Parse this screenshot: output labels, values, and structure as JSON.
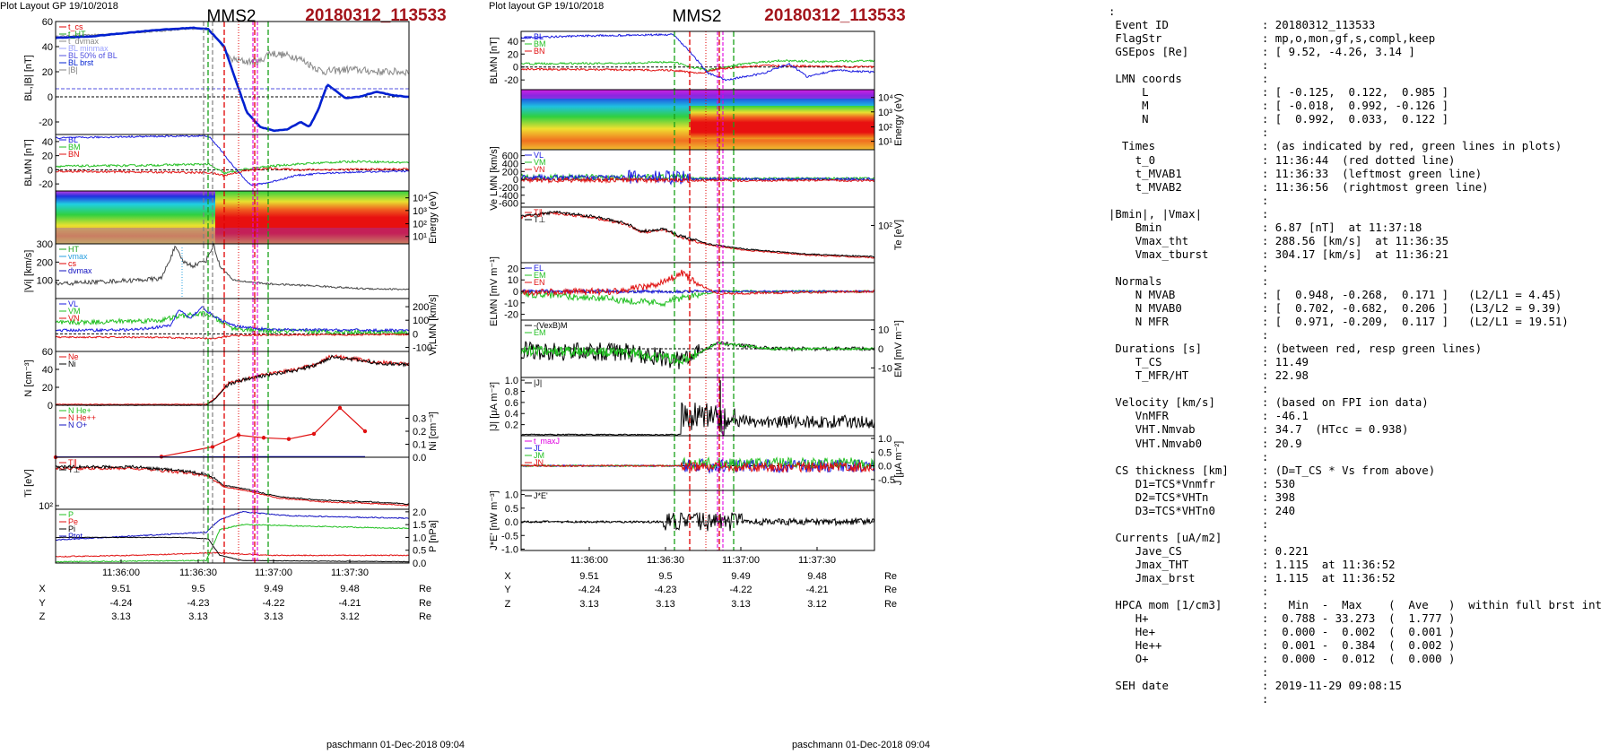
{
  "plots": [
    {
      "header": "Plot Layout GP 19/10/2018",
      "probe": "MMS2",
      "event_id": "20180312_113533",
      "footer": "paschmann 01-Dec-2018 09:04",
      "time_ticks": [
        "11:36:00",
        "11:36:30",
        "11:37:00",
        "11:37:30"
      ],
      "orbit_rows": [
        {
          "label": "X",
          "values": [
            "9.51",
            "9.5",
            "9.49",
            "9.48"
          ],
          "unit": "Re"
        },
        {
          "label": "Y",
          "values": [
            "-4.24",
            "-4.23",
            "-4.22",
            "-4.21"
          ],
          "unit": "Re"
        },
        {
          "label": "Z",
          "values": [
            "3.13",
            "3.13",
            "3.13",
            "3.12"
          ],
          "unit": "Re"
        }
      ],
      "panels": [
        {
          "id": "bl",
          "ylabel": "BL,|B| [nT]",
          "ylabel_side": "left",
          "ylim": [
            -30,
            60
          ],
          "yticks": [
            "60",
            "40",
            "20",
            "0",
            "-20"
          ],
          "yticks_side": "left",
          "legend": [
            {
              "text": "t_cs",
              "color": "#e00000"
            },
            {
              "text": "t_HT",
              "color": "#18a018"
            },
            {
              "text": "t_dvmax",
              "color": "#888888"
            },
            {
              "text": "BL minmax",
              "color": "#9aa0ff"
            },
            {
              "text": "BL 50% of BL",
              "color": "#5050e0"
            },
            {
              "text": "BL brst",
              "color": "#0020d0"
            },
            {
              "text": "|B|",
              "color": "#808080"
            }
          ]
        },
        {
          "id": "blmn",
          "ylabel": "BLMN [nT]",
          "ylabel_side": "left",
          "ylim": [
            -30,
            50
          ],
          "yticks": [
            "40",
            "20",
            "0",
            "-20"
          ],
          "yticks_side": "left",
          "legend": [
            {
              "text": "BL",
              "color": "#1a1ae0"
            },
            {
              "text": "BM",
              "color": "#22c022"
            },
            {
              "text": "BN",
              "color": "#e01010"
            }
          ]
        },
        {
          "id": "spec",
          "ylabel": "Energy (eV)",
          "ylabel_side": "right",
          "ylim": [
            1,
            4
          ],
          "yticks": [
            "10⁴",
            "10³",
            "10²",
            "10¹"
          ],
          "yticks_side": "right",
          "legend": []
        },
        {
          "id": "vi",
          "ylabel": "|Vi| [km/s]",
          "ylabel_side": "left",
          "ylim": [
            0,
            300
          ],
          "yticks": [
            "300",
            "200",
            "100"
          ],
          "yticks_side": "left",
          "legend": [
            {
              "text": "HT",
              "color": "#18a018"
            },
            {
              "text": "vmax",
              "color": "#2aa0e0"
            },
            {
              "text": "cs",
              "color": "#e00000"
            },
            {
              "text": "dvmax",
              "color": "#1010c0"
            }
          ]
        },
        {
          "id": "vilmn",
          "ylabel": "Vi,LMN [km/s]",
          "ylabel_side": "right",
          "ylim": [
            -130,
            260
          ],
          "yticks": [
            "200",
            "100",
            "0",
            "-100"
          ],
          "yticks_side": "right",
          "legend": [
            {
              "text": "VL",
              "color": "#1a1ae0"
            },
            {
              "text": "VM",
              "color": "#22c022"
            },
            {
              "text": "VN",
              "color": "#e01010"
            }
          ]
        },
        {
          "id": "n",
          "ylabel": "N [cm⁻³]",
          "ylabel_side": "left",
          "ylim": [
            0,
            60
          ],
          "yticks": [
            "60",
            "40",
            "20",
            "0"
          ],
          "yticks_side": "left",
          "legend": [
            {
              "text": "Ne",
              "color": "#e01010"
            },
            {
              "text": "Ni",
              "color": "#000000"
            }
          ]
        },
        {
          "id": "hpca",
          "ylabel": "Ni [cm⁻³]",
          "ylabel_side": "right",
          "ylim": [
            0,
            0.4
          ],
          "yticks": [
            "0.3",
            "0.2",
            "0.1",
            "0.0"
          ],
          "yticks_side": "right",
          "legend": [
            {
              "text": "N He+",
              "color": "#22c022"
            },
            {
              "text": "N He++",
              "color": "#e01010"
            },
            {
              "text": "N O+",
              "color": "#1010c0"
            }
          ]
        },
        {
          "id": "ti",
          "ylabel": "Ti [eV]",
          "ylabel_side": "left",
          "ylim": [
            1.9,
            3.3
          ],
          "yticks": [
            "10²"
          ],
          "yticks_side": "left",
          "legend": [
            {
              "text": "T∥",
              "color": "#e01010"
            },
            {
              "text": "T⊥",
              "color": "#000000"
            }
          ]
        },
        {
          "id": "p",
          "ylabel": "P [nPa]",
          "ylabel_side": "right",
          "ylim": [
            0,
            2.1
          ],
          "yticks": [
            "2.0",
            "1.5",
            "1.0",
            "0.5",
            "0.0"
          ],
          "yticks_side": "right",
          "legend": [
            {
              "text": "P",
              "color": "#22c022"
            },
            {
              "text": "Pe",
              "color": "#e01010"
            },
            {
              "text": "Pi",
              "color": "#000000"
            },
            {
              "text": "Ptot",
              "color": "#1010c0"
            }
          ]
        }
      ]
    },
    {
      "header": "Plot layout GP 19/10/2018",
      "probe": "MMS2",
      "event_id": "20180312_113533",
      "footer": "paschmann 01-Dec-2018 09:04",
      "time_ticks": [
        "11:36:00",
        "11:36:30",
        "11:37:00",
        "11:37:30"
      ],
      "orbit_rows": [
        {
          "label": "X",
          "values": [
            "9.51",
            "9.5",
            "9.49",
            "9.48"
          ],
          "unit": "Re"
        },
        {
          "label": "Y",
          "values": [
            "-4.24",
            "-4.23",
            "-4.22",
            "-4.21"
          ],
          "unit": "Re"
        },
        {
          "label": "Z",
          "values": [
            "3.13",
            "3.13",
            "3.13",
            "3.12"
          ],
          "unit": "Re"
        }
      ],
      "panels": [
        {
          "id": "blmn",
          "ylabel": "BLMN [nT]",
          "ylabel_side": "left",
          "ylim": [
            -35,
            55
          ],
          "yticks": [
            "40",
            "20",
            "0",
            "-20"
          ],
          "yticks_side": "left",
          "legend": [
            {
              "text": "BL",
              "color": "#1a1ae0"
            },
            {
              "text": "BM",
              "color": "#22c022"
            },
            {
              "text": "BN",
              "color": "#e01010"
            }
          ]
        },
        {
          "id": "espec",
          "ylabel": "Energy (eV)",
          "ylabel_side": "right",
          "ylim": [
            1,
            4
          ],
          "yticks": [
            "10⁴",
            "10³",
            "10²",
            "10¹"
          ],
          "yticks_side": "right",
          "legend": []
        },
        {
          "id": "ve",
          "ylabel": "Ve LMN [km/s]",
          "ylabel_side": "left",
          "ylim": [
            -700,
            750
          ],
          "yticks": [
            "600",
            "400",
            "200",
            "0",
            "-200",
            "-400",
            "-600"
          ],
          "yticks_side": "left",
          "legend": [
            {
              "text": "VL",
              "color": "#1a1ae0"
            },
            {
              "text": "VM",
              "color": "#22c022"
            },
            {
              "text": "VN",
              "color": "#e01010"
            }
          ]
        },
        {
          "id": "te",
          "ylabel": "Te [eV]",
          "ylabel_side": "right",
          "ylim": [
            1.3,
            2.4
          ],
          "yticks": [
            "10²"
          ],
          "yticks_side": "right",
          "legend": [
            {
              "text": "T∥",
              "color": "#e01010"
            },
            {
              "text": "T⊥",
              "color": "#000000"
            }
          ]
        },
        {
          "id": "elmn",
          "ylabel": "ELMN [mV m⁻¹]",
          "ylabel_side": "left",
          "ylim": [
            -25,
            25
          ],
          "yticks": [
            "20",
            "10",
            "0",
            "-10",
            "-20"
          ],
          "yticks_side": "left",
          "legend": [
            {
              "text": "EL",
              "color": "#1a1ae0"
            },
            {
              "text": "EM",
              "color": "#22c022"
            },
            {
              "text": "EN",
              "color": "#e01010"
            }
          ]
        },
        {
          "id": "em",
          "ylabel": "EM [mV m⁻¹]",
          "ylabel_side": "right",
          "ylim": [
            -15,
            15
          ],
          "yticks": [
            "10",
            "0",
            "-10"
          ],
          "yticks_side": "right",
          "legend": [
            {
              "text": "-(VexB)M",
              "color": "#000000"
            },
            {
              "text": "EM",
              "color": "#22c022"
            }
          ]
        },
        {
          "id": "j",
          "ylabel": "|J| [μA m⁻²]",
          "ylabel_side": "left",
          "ylim": [
            0,
            1.05
          ],
          "yticks": [
            "1.0",
            "0.8",
            "0.6",
            "0.4",
            "0.2"
          ],
          "yticks_side": "left",
          "legend": [
            {
              "text": "|J|",
              "color": "#000000"
            }
          ]
        },
        {
          "id": "jlmn",
          "ylabel": "J [μA m⁻²]",
          "ylabel_side": "right",
          "ylim": [
            -0.9,
            1.1
          ],
          "yticks": [
            "1.0",
            "0.5",
            "0.0",
            "-0.5"
          ],
          "yticks_side": "right",
          "legend": [
            {
              "text": "t_maxJ",
              "color": "#e000e0"
            },
            {
              "text": "JL",
              "color": "#1a1ae0"
            },
            {
              "text": "JM",
              "color": "#22c022"
            },
            {
              "text": "JN",
              "color": "#e01010"
            }
          ]
        },
        {
          "id": "je",
          "ylabel": "J*E' [nW m⁻³]",
          "ylabel_side": "left",
          "ylim": [
            -1.05,
            1.15
          ],
          "yticks": [
            "1.0",
            "0.5",
            "0.0",
            "-0.5",
            "-1.0"
          ],
          "yticks_side": "left",
          "legend": [
            {
              "text": "J*E'",
              "color": "#000000"
            }
          ]
        }
      ]
    }
  ],
  "text_panel": ":\n Event ID              : 20180312_113533\n FlagStr               : mp,o,mon,gf,s,compl,keep\n GSEpos [Re]           : [ 9.52, -4.26, 3.14 ]\n                       :\n LMN coords            :\n     L                 : [ -0.125,  0.122,  0.985 ]\n     M                 : [ -0.018,  0.992, -0.126 ]\n     N                 : [  0.992,  0.033,  0.122 ]\n                       :\n  Times                : (as indicated by red, green lines in plots)\n    t_0                : 11:36:44  (red dotted line)\n    t_MVAB1            : 11:36:33  (leftmost green line)\n    t_MVAB2            : 11:36:56  (rightmost green line)\n                       :\n|Bmin|, |Vmax|         :\n    Bmin               : 6.87 [nT]  at 11:37:18\n    Vmax_tht           : 288.56 [km/s]  at 11:36:35\n    Vmax_tburst        : 304.17 [km/s]  at 11:36:21\n                       :\n Normals               :\n    N MVAB             : [  0.948, -0.268,  0.171 ]   (L2/L1 = 4.45)\n    N MVAB0            : [  0.702, -0.682,  0.206 ]   (L3/L2 = 9.39)\n    N MFR              : [  0.971, -0.209,  0.117 ]   (L2/L1 = 19.51)\n                       :\n Durations [s]         : (between red, resp green lines)\n    T_CS               : 11.49\n    T_MFR/HT           : 22.98\n                       :\n Velocity [km/s]       : (based on FPI ion data)\n    VnMFR              : -46.1\n    VHT.Nmvab          : 34.7  (HTcc = 0.938)\n    VHT.Nmvab0         : 20.9\n                       :\n CS thickness [km]     : (D=T_CS * Vs from above)\n    D1=TCS*Vnmfr       : 530\n    D2=TCS*VHTn        : 398\n    D3=TCS*VHTn0       : 240\n                       :\n Currents [uA/m2]      :\n    Jave_CS            : 0.221\n    Jmax_THT           : 1.115  at 11:36:52\n    Jmax_brst          : 1.115  at 11:36:52\n                       :\n HPCA mom [1/cm3]      :   Min  -  Max    (  Ave   )  within full brst int\n    H+                 :  0.788 - 33.273  (  1.777 )\n    He+                :  0.000 -  0.002  (  0.001 )\n    He++               :  0.001 -  0.384  (  0.002 )\n    O+                 :  0.000 -  0.012  (  0.000 )\n                       :\n SEH date              : 2019-11-29 09:08:15\n                       :",
  "chart_data": [
    {
      "type": "line",
      "title": "MMS2 20180312_113533",
      "x_range": [
        "11:35:40",
        "11:37:50"
      ],
      "event_times": {
        "t_0": "11:36:44",
        "t_MVAB1": "11:36:33",
        "t_MVAB2": "11:36:56"
      },
      "series": [
        {
          "name": "BL brst",
          "panel": "bl",
          "x": [
            "11:35:40",
            "11:35:50",
            "11:36:00",
            "11:36:10",
            "11:36:20",
            "11:36:28",
            "11:36:33",
            "11:36:38",
            "11:36:42",
            "11:36:46",
            "11:36:50",
            "11:36:56",
            "11:37:02",
            "11:37:08",
            "11:37:14",
            "11:37:18",
            "11:37:22",
            "11:37:26",
            "11:37:30",
            "11:37:36",
            "11:37:42",
            "11:37:50"
          ],
          "y": [
            47,
            48,
            50,
            53,
            54,
            55,
            54,
            40,
            20,
            -5,
            -20,
            -27,
            -26,
            -22,
            -18,
            -25,
            -10,
            10,
            2,
            0,
            4,
            0
          ]
        },
        {
          "name": "|B|",
          "panel": "bl",
          "x": [
            "11:35:40",
            "11:36:00",
            "11:36:20",
            "11:36:33",
            "11:36:40",
            "11:36:46",
            "11:36:52",
            "11:37:00",
            "11:37:10",
            "11:37:20",
            "11:37:30",
            "11:37:40",
            "11:37:50"
          ],
          "y": [
            48,
            51,
            55,
            55,
            40,
            25,
            30,
            30,
            32,
            20,
            20,
            22,
            20
          ]
        },
        {
          "name": "Ni",
          "panel": "n",
          "x": [
            "11:35:40",
            "11:36:00",
            "11:36:20",
            "11:36:36",
            "11:36:42",
            "11:36:50",
            "11:37:00",
            "11:37:10",
            "11:37:20",
            "11:37:30",
            "11:37:40",
            "11:37:50"
          ],
          "y": [
            1,
            1,
            1,
            2,
            20,
            32,
            35,
            36,
            45,
            55,
            50,
            45
          ]
        },
        {
          "name": "N He++",
          "panel": "hpca",
          "x": [
            "11:35:50",
            "11:36:10",
            "11:36:30",
            "11:36:40",
            "11:36:50",
            "11:37:00",
            "11:37:10",
            "11:37:20",
            "11:37:30"
          ],
          "y": [
            0,
            0,
            0.02,
            0.1,
            0.17,
            0.15,
            0.14,
            0.18,
            0.38
          ]
        },
        {
          "name": "|J|",
          "panel": "j",
          "x": [
            "11:35:40",
            "11:36:00",
            "11:36:20",
            "11:36:36",
            "11:36:44",
            "11:36:52",
            "11:37:00",
            "11:37:20",
            "11:37:50"
          ],
          "y": [
            0.02,
            0.02,
            0.03,
            0.2,
            0.5,
            1.1,
            0.4,
            0.3,
            0.15
          ]
        }
      ]
    }
  ]
}
